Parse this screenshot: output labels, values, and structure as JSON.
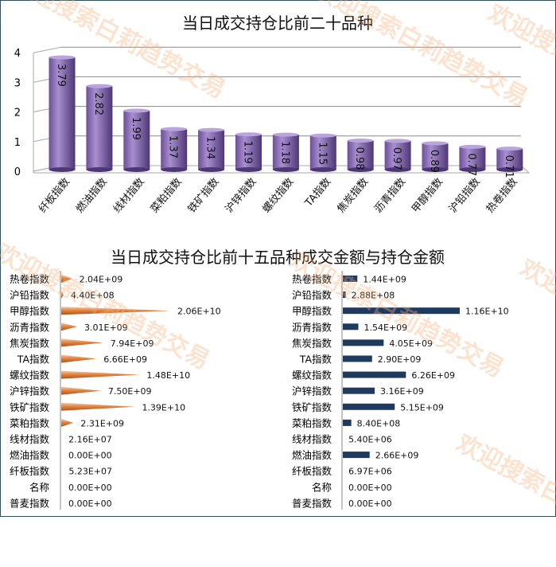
{
  "watermark": "欢迎搜索白莉趋势交易",
  "colors": {
    "cylinder": "#8a6bb5",
    "cone": "#f0a068",
    "bar": "#1f3a5f",
    "grid": "#999999"
  },
  "chart_data": [
    {
      "type": "bar",
      "title": "当日成交持仓比前二十品种",
      "categories": [
        "纤板指数",
        "燃油指数",
        "线材指数",
        "菜粕指数",
        "铁矿指数",
        "沪锌指数",
        "螺纹指数",
        "TA指数",
        "焦炭指数",
        "沥青指数",
        "甲醇指数",
        "沪铅指数",
        "热卷指数"
      ],
      "values": [
        3.79,
        2.82,
        1.99,
        1.37,
        1.34,
        1.19,
        1.18,
        1.15,
        0.98,
        0.97,
        0.89,
        0.77,
        0.71
      ],
      "labels": [
        "3.79",
        "2.82",
        "1.99",
        "1.37",
        "1.34",
        "1.19",
        "1.18",
        "1.15",
        "0.98",
        "0.97",
        "0.89",
        "0.77",
        "0.71"
      ],
      "yticks": [
        "0",
        "1",
        "2",
        "3",
        "4"
      ],
      "ylim": [
        0,
        4
      ],
      "grid": true
    },
    {
      "type": "bar",
      "title": "当日成交持仓比前十五品种成交金额与持仓金额",
      "orientation": "horizontal",
      "categories": [
        "热卷指数",
        "沪铅指数",
        "甲醇指数",
        "沥青指数",
        "焦炭指数",
        "TA指数",
        "螺纹指数",
        "沪锌指数",
        "铁矿指数",
        "菜粕指数",
        "线材指数",
        "燃油指数",
        "纤板指数",
        "名称",
        "普麦指数"
      ],
      "series": [
        {
          "name": "成交金额",
          "values": [
            2040000000.0,
            440000000.0,
            20600000000.0,
            3010000000.0,
            7940000000.0,
            6660000000.0,
            14800000000.0,
            7500000000.0,
            13900000000.0,
            2310000000.0,
            21600000.0,
            0,
            52300000.0,
            0,
            0
          ],
          "labels": [
            "2.04E+09",
            "4.40E+08",
            "2.06E+10",
            "3.01E+09",
            "7.94E+09",
            "6.66E+09",
            "1.48E+10",
            "7.50E+09",
            "1.39E+10",
            "2.31E+09",
            "2.16E+07",
            "0.00E+00",
            "5.23E+07",
            "0.00E+00",
            "0.00E+00"
          ]
        },
        {
          "name": "持仓金额",
          "values": [
            1440000000.0,
            288000000.0,
            11600000000.0,
            1540000000.0,
            4050000000.0,
            2900000000.0,
            6260000000.0,
            3160000000.0,
            5150000000.0,
            840000000.0,
            5400000.0,
            2660000000.0,
            6970000.0,
            0,
            0
          ],
          "labels": [
            "1.44E+09",
            "2.88E+08",
            "1.16E+10",
            "1.54E+09",
            "4.05E+09",
            "2.90E+09",
            "6.26E+09",
            "3.16E+09",
            "5.15E+09",
            "8.40E+08",
            "5.40E+06",
            "2.66E+09",
            "6.97E+06",
            "0.00E+00",
            "0.00E+00"
          ]
        }
      ]
    }
  ]
}
